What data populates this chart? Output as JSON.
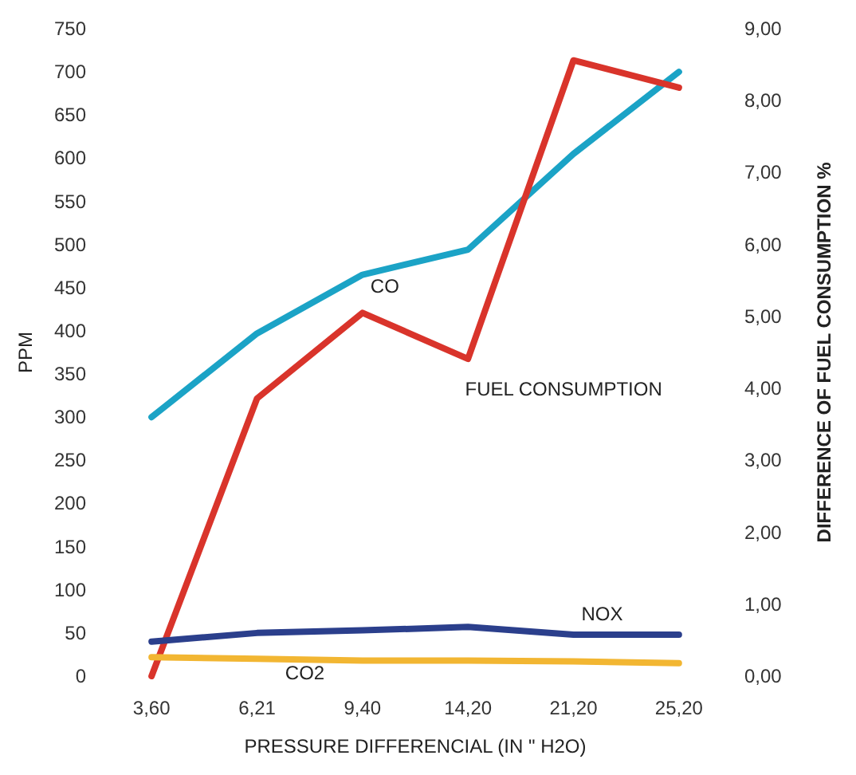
{
  "chart_data": {
    "type": "line",
    "xlabel": "PRESSURE DIFFERENCIAL (IN \" H2O)",
    "ylabel": "PPM",
    "y2label": "DIFFERENCE OF FUEL CONSUMPTION %",
    "categories": [
      "3,60",
      "6,21",
      "9,40",
      "14,20",
      "21,20",
      "25,20"
    ],
    "series": [
      {
        "name": "CO",
        "color": "#1ba3c6",
        "values": [
          300,
          397,
          465,
          494,
          605,
          700
        ]
      },
      {
        "name": "FUEL CONSUMPTION",
        "color": "#d9342b",
        "axis": "y2",
        "values": [
          0,
          3.86,
          5.05,
          4.41,
          8.56,
          8.18
        ]
      },
      {
        "name": "NOX",
        "color": "#2b3f8c",
        "values": [
          40,
          50,
          53,
          57,
          48,
          48
        ]
      },
      {
        "name": "CO2",
        "color": "#f2b632",
        "values": [
          22,
          20,
          18,
          18,
          17,
          15
        ]
      }
    ],
    "ylim": [
      0,
      750
    ],
    "yticks": [
      0,
      50,
      100,
      150,
      200,
      250,
      300,
      350,
      400,
      450,
      500,
      550,
      600,
      650,
      700,
      750
    ],
    "y2lim": [
      0,
      9
    ],
    "y2ticks": [
      {
        "value": 0,
        "label": "0,00"
      },
      {
        "value": 1,
        "label": "1,00"
      },
      {
        "value": 2,
        "label": "2,00"
      },
      {
        "value": 3,
        "label": "3,00"
      },
      {
        "value": 4,
        "label": "4,00"
      },
      {
        "value": 5,
        "label": "5,00"
      },
      {
        "value": 6,
        "label": "6,00"
      },
      {
        "value": 7,
        "label": "7,00"
      },
      {
        "value": 8,
        "label": "8,00"
      },
      {
        "value": 9,
        "label": "9,00"
      }
    ],
    "grid": false,
    "legend": false,
    "marker": "none",
    "line_style": "solid"
  }
}
